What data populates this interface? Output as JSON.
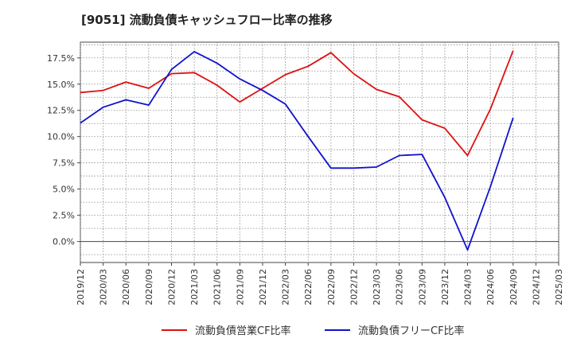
{
  "chart_data": {
    "type": "line",
    "title": "[9051]  流動負債キャッシュフロー比率の推移",
    "xlabel": "",
    "ylabel": "",
    "ylim": [
      -2.0,
      19.0
    ],
    "yticks": [
      0.0,
      2.5,
      5.0,
      7.5,
      10.0,
      12.5,
      15.0,
      17.5
    ],
    "ytick_labels": [
      "0.0%",
      "2.5%",
      "5.0%",
      "7.5%",
      "10.0%",
      "12.5%",
      "15.0%",
      "17.5%"
    ],
    "categories": [
      "2019/12",
      "2020/03",
      "2020/06",
      "2020/09",
      "2020/12",
      "2021/03",
      "2021/06",
      "2021/09",
      "2021/12",
      "2022/03",
      "2022/06",
      "2022/09",
      "2022/12",
      "2023/03",
      "2023/06",
      "2023/09",
      "2023/12",
      "2024/03",
      "2024/06",
      "2024/09",
      "2024/12",
      "2025/03"
    ],
    "series": [
      {
        "name": "流動負債営業CF比率",
        "color": "#dd1111",
        "values": [
          14.2,
          14.4,
          15.2,
          14.6,
          16.0,
          16.1,
          14.9,
          13.3,
          14.6,
          15.9,
          16.7,
          18.0,
          16.0,
          14.5,
          13.8,
          11.6,
          10.8,
          8.2,
          12.6,
          18.2,
          null,
          null
        ]
      },
      {
        "name": "流動負債フリーCF比率",
        "color": "#1111cc",
        "values": [
          11.3,
          12.8,
          13.5,
          13.0,
          16.4,
          18.1,
          17.0,
          15.5,
          14.4,
          13.1,
          10.0,
          7.0,
          7.0,
          7.1,
          8.2,
          8.3,
          4.2,
          -0.8,
          5.2,
          11.8,
          null,
          null
        ]
      }
    ]
  }
}
